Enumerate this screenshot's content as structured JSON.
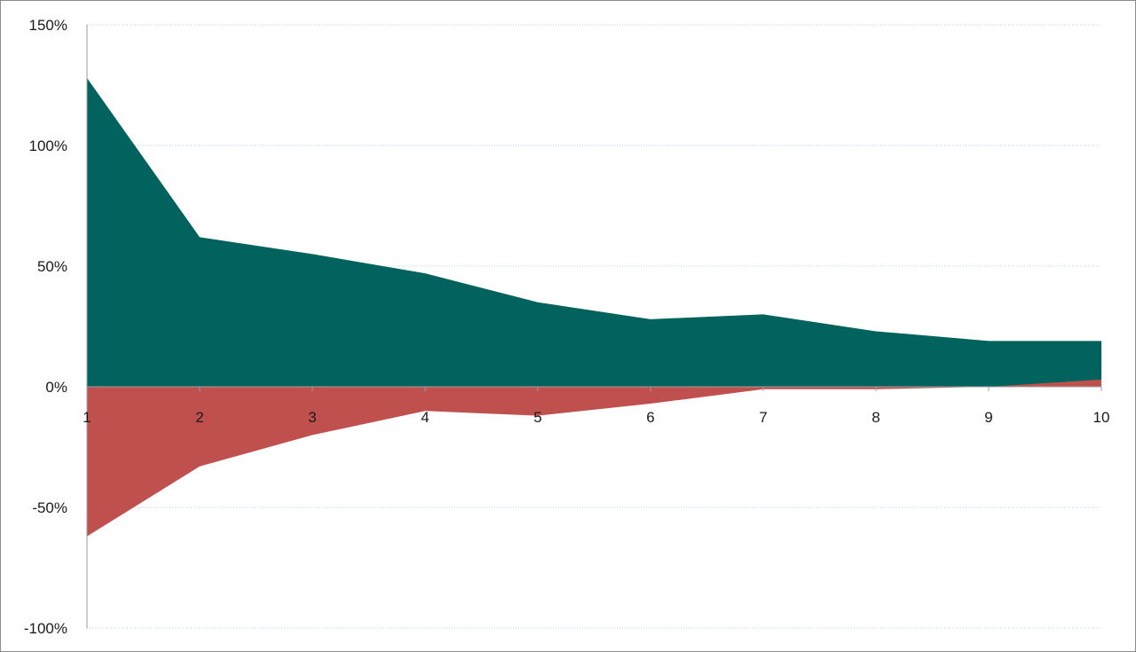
{
  "chart_data": {
    "type": "area",
    "x": [
      1,
      2,
      3,
      4,
      5,
      6,
      7,
      8,
      9,
      10
    ],
    "xlabel": "",
    "ylabel": "",
    "title": "",
    "ylim": [
      -1.0,
      1.5
    ],
    "yticks": [
      {
        "value": 1.5,
        "label": "150%"
      },
      {
        "value": 1.0,
        "label": "100%"
      },
      {
        "value": 0.5,
        "label": "50%"
      },
      {
        "value": 0.0,
        "label": "0%"
      },
      {
        "value": -0.5,
        "label": "-50%"
      },
      {
        "value": -1.0,
        "label": "-100%"
      }
    ],
    "xticks": [
      "1",
      "2",
      "3",
      "4",
      "5",
      "6",
      "7",
      "8",
      "9",
      "10"
    ],
    "grid": true,
    "legend": "none",
    "series": [
      {
        "color": "#02625e",
        "values": [
          1.28,
          0.62,
          0.55,
          0.47,
          0.35,
          0.28,
          0.3,
          0.23,
          0.19,
          0.19
        ]
      },
      {
        "color": "#c0504d",
        "values": [
          -0.62,
          -0.33,
          -0.2,
          -0.1,
          -0.12,
          -0.07,
          -0.01,
          -0.01,
          0.0,
          0.03
        ]
      }
    ]
  }
}
